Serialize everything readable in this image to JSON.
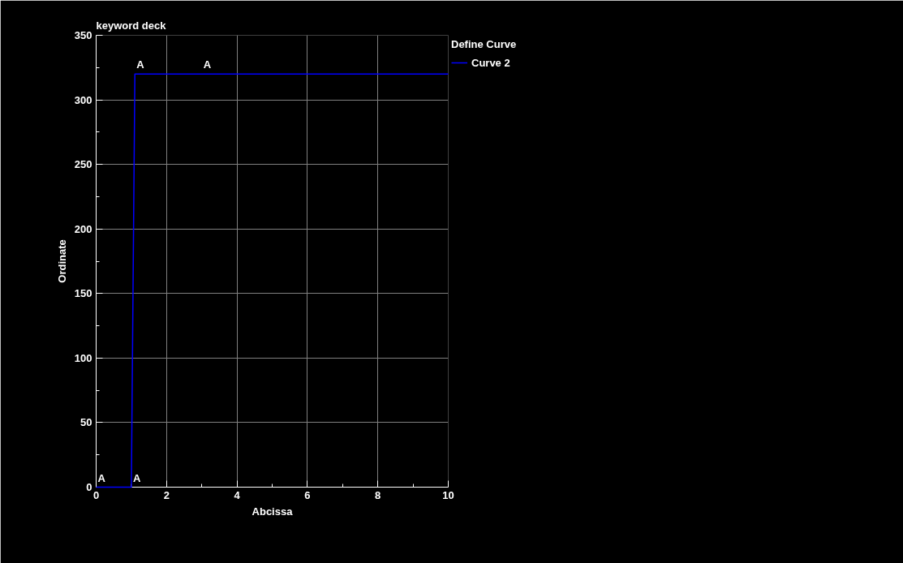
{
  "chart_data": {
    "type": "line",
    "title": "keyword deck",
    "xlabel": "Abcissa",
    "ylabel": "Ordinate",
    "legend_title": "Define Curve",
    "series": [
      {
        "name": "Curve 2",
        "color": "#0000ff",
        "x": [
          0,
          1,
          1.1,
          10
        ],
        "values": [
          0,
          0,
          320,
          320
        ]
      }
    ],
    "annotations": [
      {
        "text": "A",
        "x": 0,
        "y": 0
      },
      {
        "text": "A",
        "x": 1,
        "y": 0
      },
      {
        "text": "A",
        "x": 1.1,
        "y": 320
      },
      {
        "text": "A",
        "x": 3,
        "y": 320
      }
    ],
    "xlim": [
      0,
      10
    ],
    "ylim": [
      0,
      350
    ],
    "xticks": [
      0,
      2,
      4,
      6,
      8,
      10
    ],
    "yticks": [
      0,
      50,
      100,
      150,
      200,
      250,
      300,
      350
    ],
    "grid": true,
    "legend": "right",
    "marker": "none",
    "line_style": "solid"
  }
}
